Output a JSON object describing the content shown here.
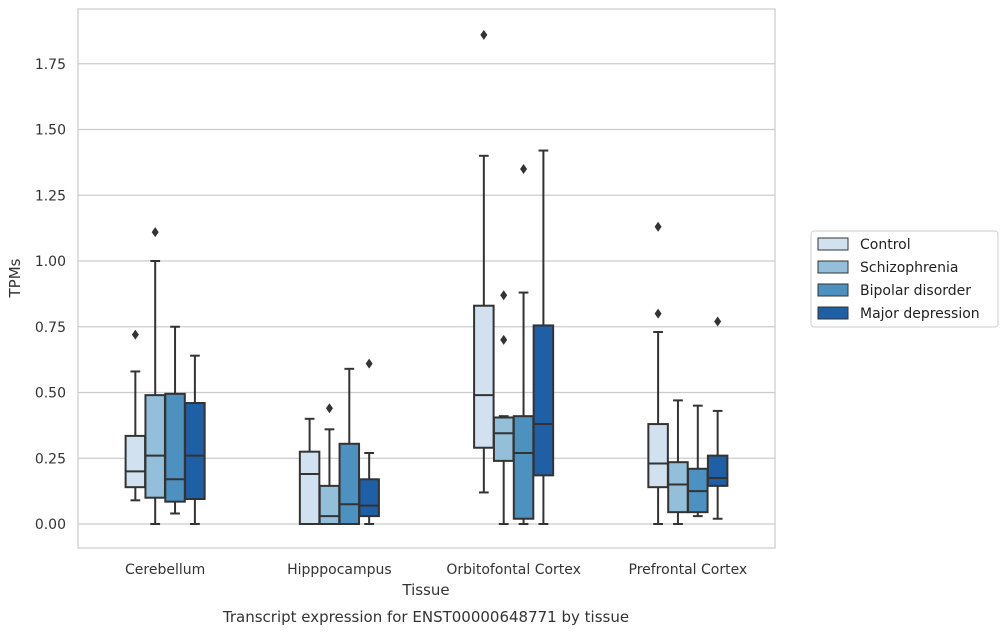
{
  "chart_data": {
    "type": "box",
    "caption": "Transcript expression for ENST00000648771 by tissue",
    "xlabel": "Tissue",
    "ylabel": "TPMs",
    "ylim": [
      -0.09,
      1.96
    ],
    "yticks": [
      "0.00",
      "0.25",
      "0.50",
      "0.75",
      "1.00",
      "1.25",
      "1.50",
      "1.75"
    ],
    "ytick_values": [
      0,
      0.25,
      0.5,
      0.75,
      1.0,
      1.25,
      1.5,
      1.75
    ],
    "grid": "horizontal",
    "legend_position": "right",
    "categories": [
      "Cerebellum",
      "Hipppocampus",
      "Orbitofontal Cortex",
      "Prefrontal Cortex"
    ],
    "series": [
      {
        "name": "Control",
        "color": "#d1e1f0",
        "boxes": [
          {
            "min": 0.09,
            "q1": 0.14,
            "median": 0.2,
            "q3": 0.335,
            "max": 0.58,
            "outliers": [
              0.72
            ]
          },
          {
            "min": 0.0,
            "q1": 0.0,
            "median": 0.19,
            "q3": 0.275,
            "max": 0.4,
            "outliers": []
          },
          {
            "min": 0.12,
            "q1": 0.29,
            "median": 0.49,
            "q3": 0.83,
            "max": 1.4,
            "outliers": [
              1.86
            ]
          },
          {
            "min": 0.0,
            "q1": 0.14,
            "median": 0.23,
            "q3": 0.38,
            "max": 0.73,
            "outliers": [
              1.13,
              0.8
            ]
          }
        ]
      },
      {
        "name": "Schizophrenia",
        "color": "#93bfdb",
        "boxes": [
          {
            "min": 0.0,
            "q1": 0.1,
            "median": 0.26,
            "q3": 0.49,
            "max": 1.0,
            "outliers": [
              1.11
            ]
          },
          {
            "min": 0.0,
            "q1": 0.0,
            "median": 0.03,
            "q3": 0.145,
            "max": 0.36,
            "outliers": [
              0.44
            ]
          },
          {
            "min": 0.0,
            "q1": 0.24,
            "median": 0.345,
            "q3": 0.405,
            "max": 0.41,
            "outliers": [
              0.87,
              0.7
            ]
          },
          {
            "min": 0.0,
            "q1": 0.045,
            "median": 0.15,
            "q3": 0.235,
            "max": 0.47,
            "outliers": []
          }
        ]
      },
      {
        "name": "Bipolar disorder",
        "color": "#4d91c1",
        "boxes": [
          {
            "min": 0.04,
            "q1": 0.085,
            "median": 0.17,
            "q3": 0.495,
            "max": 0.75,
            "outliers": []
          },
          {
            "min": 0.0,
            "q1": 0.0,
            "median": 0.075,
            "q3": 0.305,
            "max": 0.59,
            "outliers": []
          },
          {
            "min": 0.0,
            "q1": 0.02,
            "median": 0.27,
            "q3": 0.41,
            "max": 0.88,
            "outliers": [
              1.35
            ]
          },
          {
            "min": 0.03,
            "q1": 0.045,
            "median": 0.125,
            "q3": 0.21,
            "max": 0.45,
            "outliers": []
          }
        ]
      },
      {
        "name": "Major depression",
        "color": "#1f5fa5",
        "boxes": [
          {
            "min": 0.0,
            "q1": 0.095,
            "median": 0.26,
            "q3": 0.46,
            "max": 0.64,
            "outliers": []
          },
          {
            "min": 0.0,
            "q1": 0.03,
            "median": 0.07,
            "q3": 0.17,
            "max": 0.27,
            "outliers": [
              0.61
            ]
          },
          {
            "min": 0.0,
            "q1": 0.185,
            "median": 0.38,
            "q3": 0.755,
            "max": 1.42,
            "outliers": []
          },
          {
            "min": 0.02,
            "q1": 0.145,
            "median": 0.175,
            "q3": 0.26,
            "max": 0.43,
            "outliers": [
              0.77
            ]
          }
        ]
      }
    ]
  }
}
